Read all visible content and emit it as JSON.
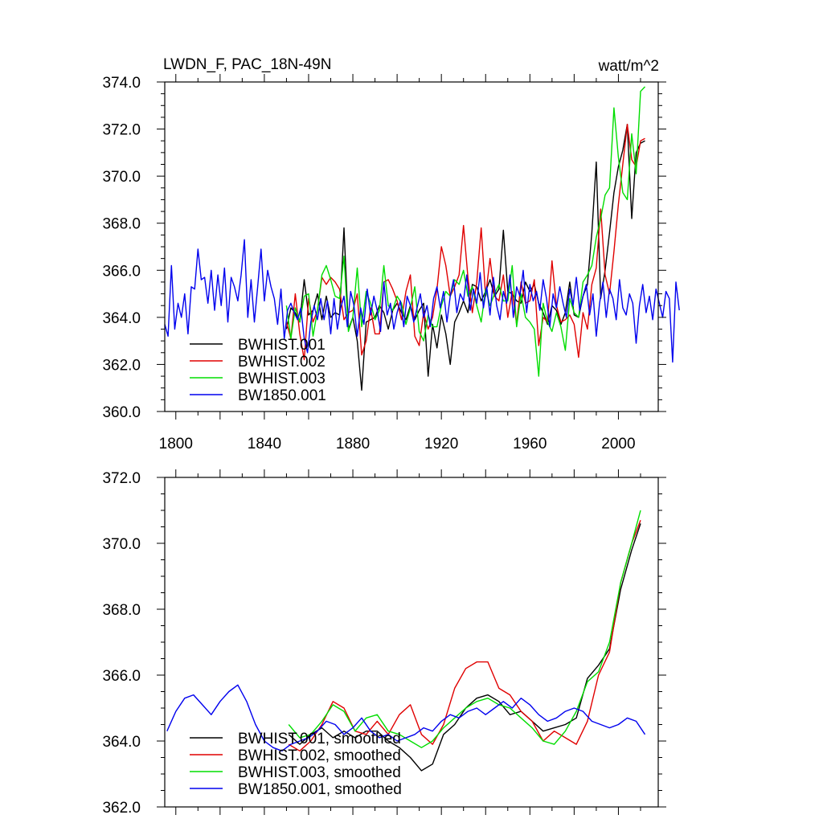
{
  "chart_data": [
    {
      "type": "line",
      "title": "LWDN_F, PAC_18N-49N",
      "units": "watt/m^2",
      "xlim": [
        1795,
        2018
      ],
      "ylim": [
        360,
        374
      ],
      "xticks": [
        1800,
        1840,
        1880,
        1920,
        1960,
        2000
      ],
      "yticks": [
        360,
        362,
        364,
        366,
        368,
        370,
        372,
        374
      ],
      "ytick_labels": [
        "360.0",
        "362.0",
        "364.0",
        "366.0",
        "368.0",
        "370.0",
        "372.0",
        "374.0"
      ],
      "legend": [
        "BWHIST.001",
        "BWHIST.002",
        "BWHIST.003",
        "BW1850.001"
      ],
      "legend_position": "bottom-left",
      "series": [
        {
          "name": "BWHIST.001",
          "color": "#000000",
          "x_start": 1850,
          "step": 2,
          "values": [
            363.5,
            364.4,
            364.2,
            363.8,
            365.6,
            364.1,
            364.3,
            365.0,
            363.9,
            364.9,
            364.0,
            364.2,
            364.1,
            367.8,
            363.5,
            364.0,
            363.0,
            360.9,
            363.8,
            363.9,
            364.0,
            364.5,
            364.2,
            363.5,
            364.3,
            364.6,
            364.2,
            363.9,
            364.5,
            363.9,
            364.3,
            364.6,
            361.5,
            363.7,
            362.7,
            364.1,
            363.3,
            362.0,
            363.8,
            364.2,
            364.7,
            364.2,
            365.4,
            365.3,
            364.7,
            365.1,
            365.6,
            364.9,
            365.2,
            367.7,
            365.1,
            365.0,
            364.7,
            364.6,
            365.5,
            365.1,
            365.4,
            364.6,
            364.2,
            363.7,
            364.5,
            364.3,
            363.7,
            364.2,
            365.5,
            364.1,
            364.0,
            364.9,
            365.4,
            367.6,
            370.6,
            364.8,
            366.0,
            367.6,
            369.3,
            370.4,
            371.1,
            372.2,
            368.2,
            371.0,
            371.4,
            371.5
          ]
        },
        {
          "name": "BWHIST.002",
          "color": "#e00000",
          "x_start": 1850,
          "step": 2,
          "values": [
            363.8,
            363.1,
            365.0,
            363.3,
            362.2,
            364.8,
            363.8,
            364.3,
            365.7,
            365.4,
            365.7,
            365.5,
            365.2,
            363.9,
            364.2,
            364.3,
            365.0,
            362.4,
            363.0,
            364.4,
            363.3,
            363.3,
            365.5,
            365.6,
            365.2,
            364.7,
            363.9,
            365.1,
            365.8,
            363.2,
            362.8,
            364.2,
            363.5,
            364.0,
            365.2,
            367.0,
            366.2,
            364.9,
            365.3,
            365.8,
            367.9,
            365.7,
            364.2,
            365.5,
            367.8,
            364.9,
            366.5,
            364.9,
            364.7,
            365.8,
            364.0,
            365.1,
            363.7,
            365.5,
            364.6,
            364.7,
            365.6,
            362.8,
            364.0,
            363.8,
            366.4,
            364.5,
            363.8,
            363.9,
            364.1,
            363.7,
            362.3,
            364.2,
            363.5,
            365.4,
            366.1,
            368.6,
            365.8,
            365.0,
            366.8,
            368.8,
            370.5,
            372.2,
            370.7,
            370.4,
            371.5,
            371.6
          ]
        },
        {
          "name": "BWHIST.003",
          "color": "#00dd00",
          "x_start": 1850,
          "step": 2,
          "values": [
            364.5,
            363.1,
            364.4,
            363.8,
            364.9,
            365.0,
            363.2,
            364.3,
            365.8,
            366.2,
            365.6,
            364.9,
            364.8,
            366.6,
            363.4,
            364.0,
            366.1,
            363.6,
            365.1,
            364.6,
            363.9,
            364.3,
            366.2,
            364.5,
            364.3,
            364.9,
            364.6,
            363.7,
            364.4,
            365.3,
            363.4,
            363.0,
            364.1,
            363.6,
            363.6,
            364.5,
            365.1,
            364.9,
            365.6,
            365.4,
            366.0,
            364.9,
            365.3,
            364.5,
            363.8,
            365.2,
            364.5,
            365.0,
            365.4,
            364.7,
            364.7,
            366.2,
            363.6,
            365.0,
            364.0,
            363.8,
            363.5,
            361.5,
            364.6,
            363.8,
            363.4,
            364.2,
            363.6,
            362.6,
            364.8,
            364.2,
            364.0,
            365.5,
            365.8,
            366.2,
            367.4,
            368.2,
            369.2,
            369.5,
            372.9,
            370.8,
            369.3,
            369.0,
            371.8,
            370.1,
            373.6,
            373.8
          ]
        },
        {
          "name": "BW1850.001",
          "color": "#0000ee",
          "x_start": 1795,
          "step": 1.5,
          "values": [
            363.7,
            363.2,
            366.2,
            363.5,
            364.6,
            364.0,
            365.0,
            363.3,
            365.3,
            365.2,
            366.9,
            365.6,
            365.7,
            364.6,
            366.0,
            364.3,
            365.8,
            364.5,
            366.1,
            363.8,
            365.7,
            365.3,
            364.7,
            365.8,
            367.3,
            364.0,
            365.6,
            363.8,
            365.3,
            366.9,
            364.7,
            366.0,
            365.3,
            364.8,
            363.7,
            365.2,
            363.1,
            364.3,
            364.6,
            364.2,
            363.9,
            364.4,
            363.1,
            362.5,
            363.8,
            364.5,
            363.9,
            364.8,
            363.9,
            364.7,
            363.3,
            364.8,
            363.5,
            364.4,
            364.9,
            363.6,
            365.1,
            364.5,
            363.2,
            364.4,
            363.7,
            365.2,
            364.1,
            364.9,
            364.3,
            363.4,
            365.5,
            364.1,
            364.6,
            363.5,
            364.2,
            364.7,
            363.6,
            364.9,
            364.5,
            363.8,
            364.4,
            365.0,
            364.0,
            364.5,
            363.6,
            364.8,
            365.3,
            364.4,
            365.1,
            363.8,
            364.9,
            365.6,
            364.2,
            365.0,
            364.7,
            365.8,
            364.3,
            365.2,
            364.6,
            365.9,
            364.4,
            365.3,
            364.1,
            365.7,
            364.5,
            363.9,
            365.1,
            364.6,
            365.8,
            364.0,
            365.3,
            364.9,
            366.0,
            364.2,
            365.4,
            364.7,
            365.1,
            364.3,
            365.6,
            364.8,
            363.6,
            365.0,
            364.4,
            365.3,
            364.6,
            364.0,
            365.2,
            364.5,
            365.7,
            364.3,
            364.9,
            365.4,
            364.1,
            365.0,
            363.2,
            364.6,
            365.5,
            364.0,
            365.2,
            364.8,
            363.9,
            365.6,
            364.4,
            364.1,
            365.0,
            364.6,
            362.9,
            364.5,
            365.4,
            364.2,
            364.9,
            363.9,
            365.2,
            364.6,
            364.0,
            365.1,
            364.8,
            362.1,
            365.5,
            364.3
          ]
        }
      ]
    },
    {
      "type": "line",
      "title": "",
      "xlim": [
        1795,
        2018
      ],
      "ylim": [
        362,
        372
      ],
      "xticks": [
        1800,
        1840,
        1880,
        1920,
        1960,
        2000
      ],
      "yticks": [
        362,
        364,
        366,
        368,
        370,
        372
      ],
      "ytick_labels": [
        "362.0",
        "364.0",
        "366.0",
        "368.0",
        "370.0",
        "372.0"
      ],
      "legend": [
        "BWHIST.001, smoothed",
        "BWHIST.002, smoothed",
        "BWHIST.003, smoothed",
        "BW1850.001, smoothed"
      ],
      "legend_position": "bottom-left",
      "series": [
        {
          "name": "BWHIST.001, smoothed",
          "color": "#000000",
          "x": [
            1851,
            1856,
            1861,
            1866,
            1871,
            1876,
            1881,
            1886,
            1891,
            1896,
            1901,
            1906,
            1911,
            1916,
            1921,
            1926,
            1931,
            1936,
            1941,
            1946,
            1951,
            1956,
            1961,
            1966,
            1971,
            1976,
            1981,
            1986,
            1991,
            1996,
            2001,
            2006,
            2010
          ],
          "values": [
            364.2,
            363.9,
            364.2,
            364.4,
            364.1,
            364.3,
            364.1,
            364.3,
            364.3,
            364.0,
            363.8,
            363.5,
            363.1,
            363.3,
            364.2,
            364.5,
            365.0,
            365.3,
            365.4,
            365.2,
            364.8,
            364.9,
            364.6,
            364.3,
            364.4,
            364.5,
            364.7,
            365.9,
            366.3,
            366.8,
            368.6,
            369.8,
            370.6
          ]
        },
        {
          "name": "BWHIST.002, smoothed",
          "color": "#e00000",
          "x": [
            1851,
            1856,
            1861,
            1866,
            1871,
            1876,
            1881,
            1886,
            1891,
            1896,
            1901,
            1906,
            1911,
            1916,
            1921,
            1926,
            1931,
            1936,
            1941,
            1946,
            1951,
            1956,
            1961,
            1966,
            1971,
            1976,
            1981,
            1986,
            1991,
            1996,
            2001,
            2006,
            2010
          ],
          "values": [
            363.9,
            363.7,
            364.0,
            364.5,
            365.2,
            365.0,
            364.3,
            364.2,
            364.6,
            364.2,
            364.8,
            365.1,
            364.2,
            363.9,
            364.5,
            365.6,
            366.2,
            366.4,
            366.4,
            365.6,
            365.4,
            364.9,
            364.6,
            364.0,
            364.3,
            364.1,
            363.9,
            364.6,
            366.0,
            366.7,
            368.8,
            370.0,
            370.7
          ]
        },
        {
          "name": "BWHIST.003, smoothed",
          "color": "#00dd00",
          "x": [
            1851,
            1856,
            1861,
            1866,
            1871,
            1876,
            1881,
            1886,
            1891,
            1896,
            1901,
            1906,
            1911,
            1916,
            1921,
            1926,
            1931,
            1936,
            1941,
            1946,
            1951,
            1956,
            1961,
            1966,
            1971,
            1976,
            1981,
            1986,
            1991,
            1996,
            2001,
            2006,
            2010
          ],
          "values": [
            364.5,
            364.1,
            364.2,
            364.6,
            365.1,
            364.9,
            364.3,
            364.7,
            364.8,
            364.3,
            364.2,
            364.0,
            363.8,
            364.0,
            364.4,
            364.7,
            365.0,
            365.2,
            365.3,
            365.1,
            365.0,
            364.7,
            364.4,
            364.0,
            363.9,
            364.3,
            364.9,
            365.8,
            366.1,
            367.0,
            368.8,
            370.0,
            371.0
          ]
        },
        {
          "name": "BW1850.001, smoothed",
          "color": "#0000ee",
          "x": [
            1796,
            1800,
            1804,
            1808,
            1812,
            1816,
            1820,
            1824,
            1828,
            1832,
            1836,
            1840,
            1844,
            1848,
            1852,
            1856,
            1860,
            1864,
            1868,
            1872,
            1876,
            1880,
            1884,
            1888,
            1892,
            1896,
            1900,
            1904,
            1908,
            1912,
            1916,
            1920,
            1924,
            1928,
            1932,
            1936,
            1940,
            1944,
            1948,
            1952,
            1956,
            1960,
            1964,
            1968,
            1972,
            1976,
            1980,
            1984,
            1988,
            1992,
            1996,
            2000,
            2004,
            2008,
            2012
          ],
          "values": [
            364.3,
            364.9,
            365.3,
            365.4,
            365.1,
            364.8,
            365.2,
            365.5,
            365.7,
            365.2,
            364.5,
            364.0,
            363.8,
            363.7,
            363.9,
            364.0,
            364.1,
            364.3,
            364.6,
            364.5,
            364.2,
            364.4,
            364.7,
            364.3,
            364.1,
            364.2,
            364.0,
            364.1,
            364.2,
            364.4,
            364.3,
            364.6,
            364.8,
            364.7,
            364.9,
            365.0,
            364.8,
            365.0,
            365.2,
            365.0,
            365.3,
            365.1,
            364.8,
            364.6,
            364.7,
            364.9,
            365.0,
            364.9,
            364.6,
            364.5,
            364.4,
            364.5,
            364.7,
            364.6,
            364.2
          ]
        }
      ]
    }
  ]
}
